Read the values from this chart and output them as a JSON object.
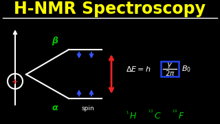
{
  "title": "H-NMR Spectroscopy",
  "title_color": "#FFFF00",
  "bg_color": "#000000",
  "title_fontsize": 17,
  "white_color": "#FFFFFF",
  "green_color": "#00CC00",
  "blue_color": "#3355FF",
  "red_color": "#EE2222",
  "box_color": "#2244EE",
  "beta_label": "β",
  "alpha_label": "α"
}
